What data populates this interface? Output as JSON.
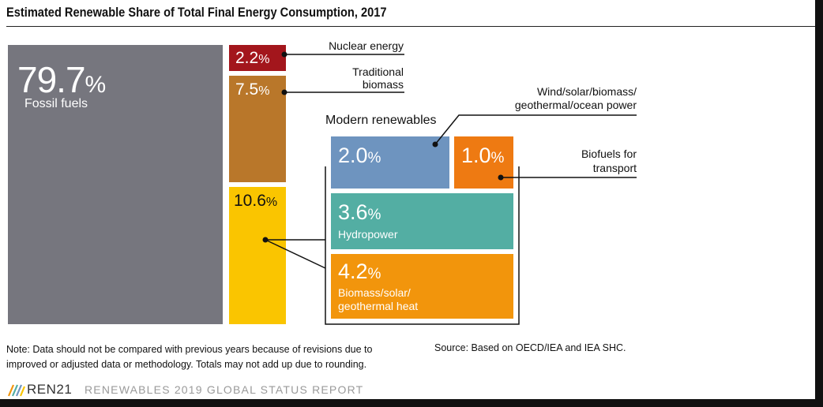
{
  "header": {
    "title": "Estimated Renewable Share of Total Final Energy Consumption, 2017"
  },
  "chart_data": {
    "type": "treemap",
    "title": "Estimated Renewable Share of Total Final Energy Consumption, 2017",
    "unit": "%",
    "segments": [
      {
        "name": "Fossil fuels",
        "value": 79.7,
        "value_text": "79.7",
        "color": "#76767e"
      },
      {
        "name": "Nuclear energy",
        "value": 2.2,
        "value_text": "2.2",
        "color": "#a3161c"
      },
      {
        "name": "Traditional biomass",
        "value": 7.5,
        "value_text": "7.5",
        "color": "#b9772a"
      },
      {
        "name": "Modern renewables",
        "value": 10.6,
        "value_text": "10.6",
        "color": "#fac500",
        "children": [
          {
            "name": "Wind/solar/biomass/ geothermal/ocean power",
            "value": 2.0,
            "value_text": "2.0",
            "color": "#6e94bf"
          },
          {
            "name": "Biofuels for transport",
            "value": 1.0,
            "value_text": "1.0",
            "color": "#ee7a12"
          },
          {
            "name": "Hydropower",
            "value": 3.6,
            "value_text": "3.6",
            "color": "#53aea3"
          },
          {
            "name": "Biomass/solar/ geothermal heat",
            "value": 4.2,
            "value_text": "4.2",
            "color": "#f2950c"
          }
        ]
      }
    ]
  },
  "labels": {
    "fossil": "Fossil fuels",
    "nuclear": "Nuclear energy",
    "traditional_1": "Traditional",
    "traditional_2": "biomass",
    "modern": "Modern renewables",
    "wind_1": "Wind/solar/biomass/",
    "wind_2": "geothermal/ocean power",
    "biofuels_1": "Biofuels for",
    "biofuels_2": "transport",
    "hydro": "Hydropower",
    "heat_1": "Biomass/solar/",
    "heat_2": "geothermal heat",
    "percent": "%"
  },
  "footer": {
    "note_1": "Note: Data should not be compared with previous years because of revisions due to",
    "note_2": "improved or adjusted data or methodology. Totals may not add up due to rounding.",
    "source": "Source: Based on OECD/IEA and IEA SHC.",
    "logo": "REN21",
    "report": "RENEWABLES 2019 GLOBAL STATUS REPORT"
  }
}
